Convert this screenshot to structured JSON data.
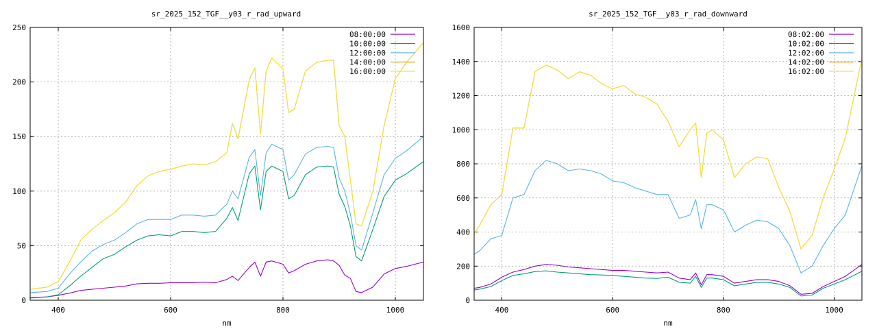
{
  "chart_data": [
    {
      "type": "line",
      "title": "sr_2025_152_TGF__y03_r_rad_upward",
      "xlabel": "nm",
      "ylabel": "",
      "xlim": [
        350,
        1050
      ],
      "ylim": [
        0,
        250
      ],
      "xticks": [
        400,
        600,
        800,
        1000
      ],
      "yticks": [
        0,
        50,
        100,
        150,
        200,
        250
      ],
      "grid": true,
      "legend": "top-right",
      "x": [
        350,
        380,
        400,
        420,
        440,
        460,
        480,
        500,
        520,
        540,
        560,
        580,
        600,
        620,
        640,
        660,
        680,
        700,
        710,
        720,
        740,
        750,
        760,
        770,
        780,
        800,
        810,
        820,
        840,
        860,
        880,
        890,
        900,
        910,
        920,
        930,
        940,
        960,
        980,
        1000,
        1020,
        1050
      ],
      "series": [
        {
          "name": "08:00:00",
          "color": "#9400d3",
          "values": [
            2.5,
            3,
            4.5,
            6.5,
            9,
            10,
            11,
            12,
            13,
            15,
            15.5,
            15.5,
            16,
            16,
            16,
            16.5,
            16,
            19,
            22,
            18,
            30,
            35,
            22,
            35,
            36,
            33,
            25,
            27,
            33,
            36,
            37,
            36,
            32,
            23,
            20,
            8,
            7,
            12,
            24,
            29,
            31,
            35
          ]
        },
        {
          "name": "10:00:00",
          "color": "#009e73",
          "values": [
            2,
            3,
            5,
            13,
            22,
            30,
            38,
            42,
            49,
            55,
            59,
            60,
            59,
            63,
            63,
            62,
            63,
            75,
            85,
            73,
            116,
            123,
            83,
            118,
            123,
            118,
            93,
            96,
            115,
            122,
            123,
            122,
            97,
            86,
            68,
            40,
            36,
            65,
            95,
            110,
            116,
            127
          ]
        },
        {
          "name": "12:00:00",
          "color": "#56b4e9",
          "values": [
            7,
            8,
            11,
            24,
            35,
            45,
            51,
            55,
            62,
            70,
            74,
            74,
            74,
            78,
            78,
            77,
            78,
            88,
            100,
            93,
            131,
            138,
            96,
            135,
            143,
            138,
            110,
            115,
            134,
            140,
            141,
            140,
            112,
            100,
            79,
            50,
            46,
            80,
            115,
            130,
            137,
            150
          ]
        },
        {
          "name": "14:00:00",
          "color": "#e69f00",
          "values": [
            10,
            12,
            17,
            35,
            55,
            65,
            73,
            80,
            90,
            105,
            114,
            118,
            120,
            123,
            125,
            124,
            127,
            135,
            162,
            148,
            202,
            213,
            152,
            210,
            222,
            212,
            172,
            175,
            210,
            218,
            220,
            220,
            160,
            150,
            110,
            70,
            68,
            100,
            160,
            203,
            218,
            236
          ]
        },
        {
          "name": "16:00:00",
          "color": "#f0e442",
          "values": [
            10,
            12,
            17,
            35,
            55,
            65,
            73,
            80,
            90,
            105,
            114,
            118,
            120,
            123,
            125,
            124,
            127,
            135,
            162,
            148,
            202,
            213,
            152,
            210,
            222,
            212,
            172,
            175,
            210,
            218,
            220,
            220,
            160,
            150,
            110,
            70,
            68,
            100,
            160,
            203,
            218,
            236
          ]
        }
      ]
    },
    {
      "type": "line",
      "title": "sr_2025_152_TGF__y03_r_rad_downward",
      "xlabel": "nm",
      "ylabel": "",
      "xlim": [
        350,
        1050
      ],
      "ylim": [
        0,
        1600
      ],
      "xticks": [
        400,
        600,
        800,
        1000
      ],
      "yticks": [
        0,
        200,
        400,
        600,
        800,
        1000,
        1200,
        1400,
        1600
      ],
      "grid": true,
      "legend": "top-right",
      "x": [
        350,
        360,
        380,
        400,
        420,
        440,
        460,
        480,
        500,
        520,
        540,
        560,
        580,
        600,
        620,
        640,
        660,
        680,
        700,
        720,
        740,
        750,
        760,
        770,
        780,
        800,
        820,
        840,
        860,
        880,
        900,
        920,
        940,
        960,
        980,
        1000,
        1020,
        1050
      ],
      "series": [
        {
          "name": "08:02:00",
          "color": "#9400d3",
          "values": [
            70,
            75,
            95,
            135,
            165,
            180,
            200,
            210,
            205,
            195,
            190,
            185,
            180,
            175,
            175,
            170,
            165,
            160,
            165,
            130,
            120,
            160,
            90,
            150,
            150,
            140,
            100,
            110,
            120,
            120,
            110,
            85,
            35,
            40,
            80,
            110,
            140,
            210
          ]
        },
        {
          "name": "10:02:00",
          "color": "#009e73",
          "values": [
            60,
            65,
            80,
            115,
            145,
            155,
            168,
            172,
            165,
            160,
            155,
            150,
            148,
            145,
            140,
            135,
            130,
            128,
            135,
            105,
            100,
            140,
            75,
            130,
            130,
            120,
            85,
            95,
            105,
            105,
            95,
            75,
            25,
            30,
            70,
            95,
            120,
            170
          ]
        },
        {
          "name": "12:02:00",
          "color": "#56b4e9",
          "values": [
            270,
            290,
            360,
            380,
            600,
            620,
            760,
            820,
            800,
            760,
            770,
            760,
            740,
            700,
            690,
            660,
            640,
            620,
            620,
            480,
            500,
            590,
            420,
            560,
            560,
            530,
            400,
            440,
            470,
            460,
            420,
            320,
            160,
            200,
            320,
            420,
            500,
            790
          ]
        },
        {
          "name": "14:02:00",
          "color": "#e69f00",
          "values": [
            390,
            440,
            560,
            620,
            1010,
            1010,
            1340,
            1380,
            1350,
            1300,
            1340,
            1320,
            1270,
            1240,
            1260,
            1210,
            1190,
            1150,
            1050,
            900,
            1000,
            1040,
            720,
            980,
            1000,
            940,
            720,
            800,
            840,
            830,
            660,
            520,
            300,
            380,
            600,
            770,
            950,
            1420
          ]
        },
        {
          "name": "16:02:00",
          "color": "#f0e442",
          "values": [
            390,
            440,
            560,
            620,
            1010,
            1010,
            1340,
            1380,
            1350,
            1300,
            1340,
            1320,
            1270,
            1240,
            1260,
            1210,
            1190,
            1150,
            1050,
            900,
            1000,
            1040,
            720,
            980,
            1000,
            940,
            720,
            800,
            840,
            830,
            660,
            520,
            300,
            380,
            600,
            770,
            950,
            1420
          ]
        }
      ]
    }
  ]
}
